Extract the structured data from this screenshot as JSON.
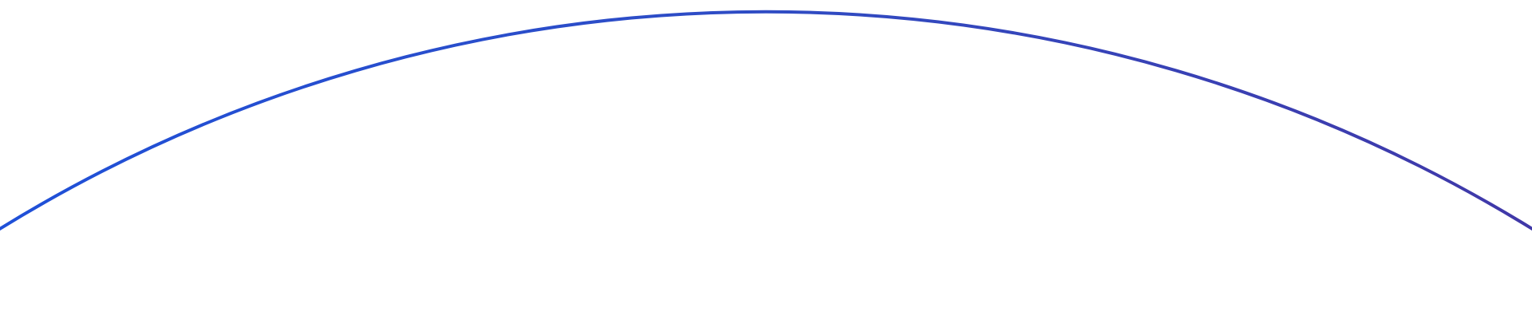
{
  "decoration": {
    "shape": "arc",
    "colors": {
      "start": "#1f50d8",
      "middle": "#2f4cc4",
      "end": "#4038a8"
    },
    "background": "#ffffff"
  }
}
